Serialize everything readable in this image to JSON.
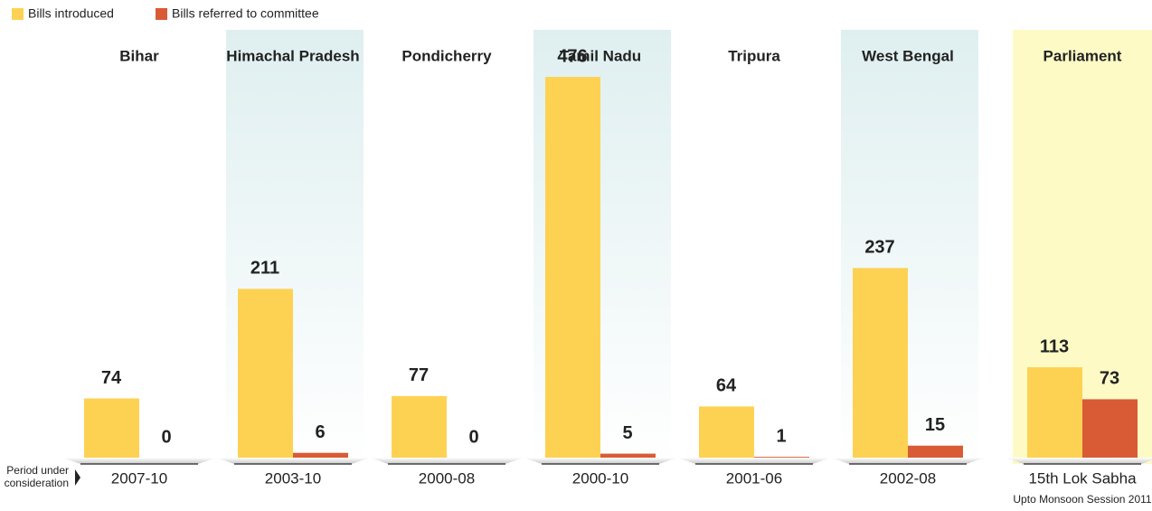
{
  "chart_data": {
    "type": "bar",
    "categories": [
      "Bihar",
      "Himachal Pradesh",
      "Pondicherry",
      "Tamil Nadu",
      "Tripura",
      "West Bengal",
      "Parliament"
    ],
    "periods": [
      "2007-10",
      "2003-10",
      "2000-08",
      "2000-10",
      "2001-06",
      "2002-08",
      "15th Lok Sabha"
    ],
    "series": [
      {
        "name": "Bills introduced",
        "color": "#fdd253",
        "values": [
          74,
          211,
          77,
          476,
          64,
          237,
          113
        ]
      },
      {
        "name": "Bills referred to committee",
        "color": "#d95b35",
        "values": [
          0,
          6,
          0,
          5,
          1,
          15,
          73
        ]
      }
    ],
    "period_label": [
      "Period under",
      "consideration"
    ],
    "note": "Upto Monsoon Session 2011",
    "legend": "top-left"
  }
}
